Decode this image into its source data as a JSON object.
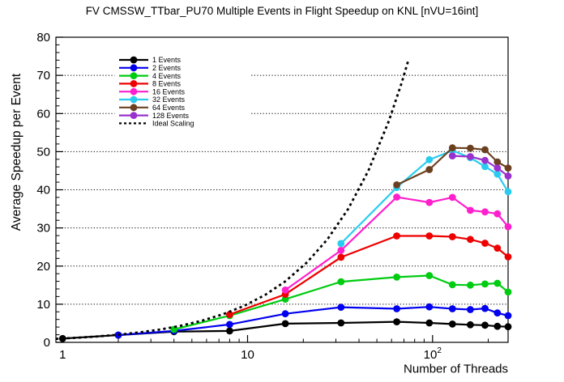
{
  "chart_data": {
    "type": "line",
    "title": "FV CMSSW_TTbar_PU70 Multiple Events in Flight Speedup on KNL [nVU=16int]",
    "xlabel": "Number of Threads",
    "ylabel": "Average Speedup per Event",
    "x_scale": "log",
    "xlim": [
      0.92,
      256
    ],
    "ylim": [
      0,
      80
    ],
    "yticks": [
      0,
      10,
      20,
      30,
      40,
      50,
      60,
      70,
      80
    ],
    "y_minor_step": 2,
    "grid_y": [
      10,
      20,
      30,
      40,
      50,
      60,
      70
    ],
    "xticks": [
      {
        "value": 1,
        "label": "1",
        "exp": ""
      },
      {
        "value": 10,
        "label": "10",
        "exp": ""
      },
      {
        "value": 100,
        "label": "10",
        "exp": "2"
      }
    ],
    "legend_position": "top-left",
    "series": [
      {
        "name": "1 Events",
        "color": "#000000",
        "marker": true,
        "dashed": false,
        "x": [
          1,
          2,
          4,
          8,
          16,
          32,
          64,
          96,
          128,
          160,
          192,
          224,
          256
        ],
        "y": [
          1.0,
          1.9,
          2.8,
          3.0,
          4.9,
          5.1,
          5.4,
          5.1,
          4.8,
          4.6,
          4.5,
          4.2,
          4.1
        ]
      },
      {
        "name": "2 Events",
        "color": "#0000EE",
        "marker": true,
        "dashed": false,
        "x": [
          2,
          4,
          8,
          16,
          32,
          64,
          96,
          128,
          160,
          192,
          224,
          256
        ],
        "y": [
          1.9,
          3.0,
          4.7,
          7.5,
          9.2,
          8.8,
          9.3,
          8.8,
          8.6,
          8.9,
          7.7,
          7.0
        ]
      },
      {
        "name": "4 Events",
        "color": "#00CC11",
        "marker": true,
        "dashed": false,
        "x": [
          4,
          8,
          16,
          32,
          64,
          96,
          128,
          160,
          192,
          224,
          256
        ],
        "y": [
          3.4,
          7.0,
          11.3,
          15.9,
          17.1,
          17.5,
          15.1,
          15.0,
          15.3,
          15.5,
          13.2
        ]
      },
      {
        "name": "8 Events",
        "color": "#EE0000",
        "marker": true,
        "dashed": false,
        "x": [
          8,
          16,
          32,
          64,
          96,
          128,
          160,
          192,
          224,
          256
        ],
        "y": [
          7.3,
          12.6,
          22.3,
          27.9,
          27.9,
          27.7,
          27.0,
          26.0,
          24.7,
          22.4
        ]
      },
      {
        "name": "16 Events",
        "color": "#FF1FCC",
        "marker": true,
        "dashed": false,
        "x": [
          16,
          32,
          64,
          96,
          128,
          160,
          192,
          224,
          256
        ],
        "y": [
          13.7,
          24.1,
          38.1,
          36.7,
          38.0,
          34.6,
          34.2,
          33.7,
          30.3
        ]
      },
      {
        "name": "32 Events",
        "color": "#29CCEE",
        "marker": true,
        "dashed": false,
        "x": [
          32,
          64,
          96,
          128,
          160,
          192,
          224,
          256
        ],
        "y": [
          25.9,
          40.6,
          47.9,
          50.3,
          48.4,
          46.1,
          44.1,
          39.5
        ]
      },
      {
        "name": "64 Events",
        "color": "#6B4020",
        "marker": true,
        "dashed": false,
        "x": [
          64,
          96,
          128,
          160,
          192,
          224,
          256
        ],
        "y": [
          41.3,
          45.3,
          51.0,
          50.9,
          50.5,
          47.3,
          45.7
        ]
      },
      {
        "name": "128 Events",
        "color": "#9932CC",
        "marker": true,
        "dashed": false,
        "x": [
          128,
          160,
          192,
          224,
          256
        ],
        "y": [
          48.9,
          48.7,
          47.7,
          45.7,
          43.6
        ]
      },
      {
        "name": "Ideal Scaling",
        "color": "#000000",
        "marker": false,
        "dashed": true,
        "x": [
          0.92,
          1.2,
          1.5,
          2,
          2.6,
          3.4,
          4.4,
          5.7,
          7.4,
          9.6,
          12.5,
          16,
          21,
          27,
          35,
          45,
          58,
          68,
          74
        ],
        "y": [
          0.92,
          1.2,
          1.5,
          2,
          2.6,
          3.4,
          4.4,
          5.7,
          7.4,
          9.6,
          12.5,
          16,
          21,
          27,
          35,
          45,
          58,
          68,
          74
        ]
      }
    ]
  }
}
